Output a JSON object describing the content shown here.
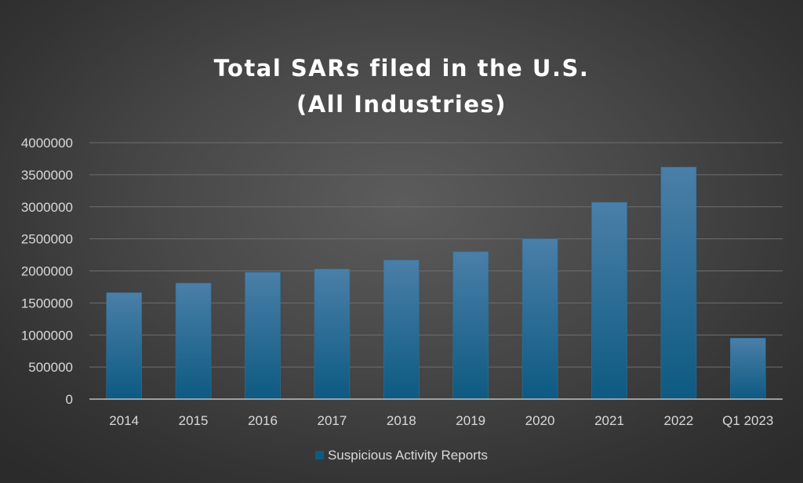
{
  "chart_data": {
    "type": "bar",
    "title": "Total SARs filed in the U.S.",
    "subtitle": "(All Industries)",
    "xlabel": "",
    "ylabel": "",
    "categories": [
      "2014",
      "2015",
      "2016",
      "2017",
      "2018",
      "2019",
      "2020",
      "2021",
      "2022",
      "Q1 2023"
    ],
    "series": [
      {
        "name": "Suspicious Activity Reports",
        "values": [
          1660000,
          1810000,
          1980000,
          2030000,
          2170000,
          2300000,
          2500000,
          3070000,
          3620000,
          950000
        ]
      }
    ],
    "ylim": [
      0,
      4000000
    ],
    "yticks": [
      0,
      500000,
      1000000,
      1500000,
      2000000,
      2500000,
      3000000,
      3500000,
      4000000
    ],
    "ytick_labels": [
      "0",
      "500000",
      "1000000",
      "1500000",
      "2000000",
      "2500000",
      "3000000",
      "3500000",
      "4000000"
    ],
    "grid": true,
    "legend": "bottom",
    "colors": {
      "bar_top": "#4a7fa8",
      "bar_bottom": "#0d5a82",
      "gridline": "#6e6e6e",
      "axis": "#bfbfbf",
      "text": "#d9d9d9",
      "title": "#ffffff"
    }
  }
}
